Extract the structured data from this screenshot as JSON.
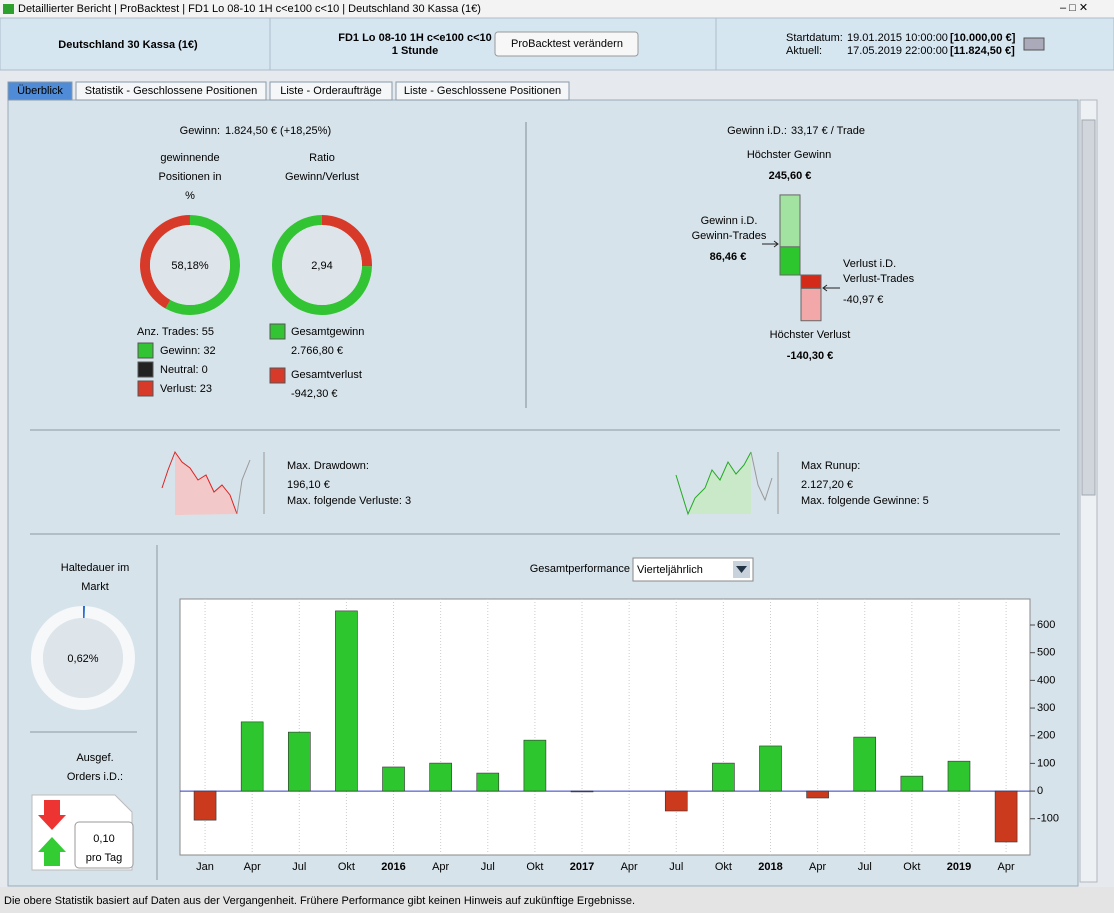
{
  "window_title": "Detaillierter Bericht | ProBacktest | FD1 Lo 08-10 1H c<e100 c<10 | Deutschland 30 Kassa (1€)",
  "header": {
    "instrument": "Deutschland 30 Kassa (1€)",
    "strategy": "FD1 Lo 08-10 1H c<e100 c<10",
    "timeframe": "1 Stunde",
    "button": "ProBacktest verändern",
    "start_label": "Startdatum:",
    "start_date": "19.01.2015 10:00:00",
    "start_capital": "[10.000,00 €]",
    "current_label": "Aktuell:",
    "current_date": "17.05.2019 22:00:00",
    "current_capital": "[11.824,50 €]"
  },
  "tabs": [
    "Überblick",
    "Statistik - Geschlossene Positionen",
    "Liste - Orderaufträge",
    "Liste - Geschlossene Positionen"
  ],
  "summary": {
    "profit_label": "Gewinn:",
    "profit": "1.824,50 € (+18,25%)",
    "win_title": [
      "gewinnende",
      "Positionen in",
      "%"
    ],
    "win_pct": {
      "value": 58.18,
      "label": "58,18%"
    },
    "ratio_title": [
      "Ratio",
      "Gewinn/Verlust"
    ],
    "ratio": "2,94",
    "trades": "Anz. Trades: 55",
    "winners": "Gewinn: 32",
    "neutral": "Neutral: 0",
    "losers": "Verlust: 23",
    "gross_profit_label": "Gesamtgewinn",
    "gross_profit": {
      "value": 2766.8,
      "label": "2.766,80 €"
    },
    "gross_loss_label": "Gesamtverlust",
    "gross_loss": {
      "value": -942.3,
      "label": "-942,30 €"
    }
  },
  "average": {
    "label": "Gewinn i.D.:",
    "value": "33,17 € / Trade",
    "max_gain_label": "Höchster Gewinn",
    "max_gain": {
      "value": 245.6,
      "label": "245,60 €"
    },
    "avg_gain_label": [
      "Gewinn i.D.",
      "Gewinn-Trades"
    ],
    "avg_gain": {
      "value": 86.46,
      "label": "86,46 €"
    },
    "avg_loss_label": [
      "Verlust i.D.",
      "Verlust-Trades"
    ],
    "avg_loss": {
      "value": -40.97,
      "label": "-40,97 €"
    },
    "max_loss_label": "Höchster Verlust",
    "max_loss": {
      "value": -140.3,
      "label": "-140,30 €"
    }
  },
  "drawdown": {
    "label": "Max. Drawdown:",
    "value": "196,10 €",
    "note": "Max. folgende Verluste: 3"
  },
  "runup": {
    "label": "Max Runup:",
    "value": "2.127,20 €",
    "note": "Max. folgende Gewinne: 5"
  },
  "exposure": {
    "title": [
      "Haltedauer im",
      "Markt"
    ],
    "value": {
      "value": 0.62,
      "label": "0,62%"
    }
  },
  "orders": {
    "title": [
      "Ausgef.",
      "Orders i.D.:"
    ],
    "value": "0,10",
    "unit": "pro Tag"
  },
  "performance": {
    "title": "Gesamtperformance",
    "period": "Vierteljährlich"
  },
  "chart_data": {
    "type": "bar",
    "categories": [
      "Jan",
      "Apr",
      "Jul",
      "Okt",
      "2016",
      "Apr",
      "Jul",
      "Okt",
      "2017",
      "Apr",
      "Jul",
      "Okt",
      "2018",
      "Apr",
      "Jul",
      "Okt",
      "2019",
      "Apr"
    ],
    "values": [
      -105,
      250,
      213,
      651,
      87,
      101,
      65,
      184,
      -3,
      null,
      -72,
      101,
      163,
      -25,
      195,
      54,
      108,
      -184
    ],
    "positive_color": "#2ec62e",
    "negative_color": "#cc3a1e",
    "ylim": [
      -231,
      694
    ],
    "yticks": [
      -100,
      0,
      100,
      200,
      300,
      400,
      500,
      600
    ],
    "grid": true
  },
  "footer": "Die obere Statistik basiert auf Daten aus der Vergangenheit. Frühere Performance gibt keinen Hinweis auf zukünftige Ergebnisse."
}
